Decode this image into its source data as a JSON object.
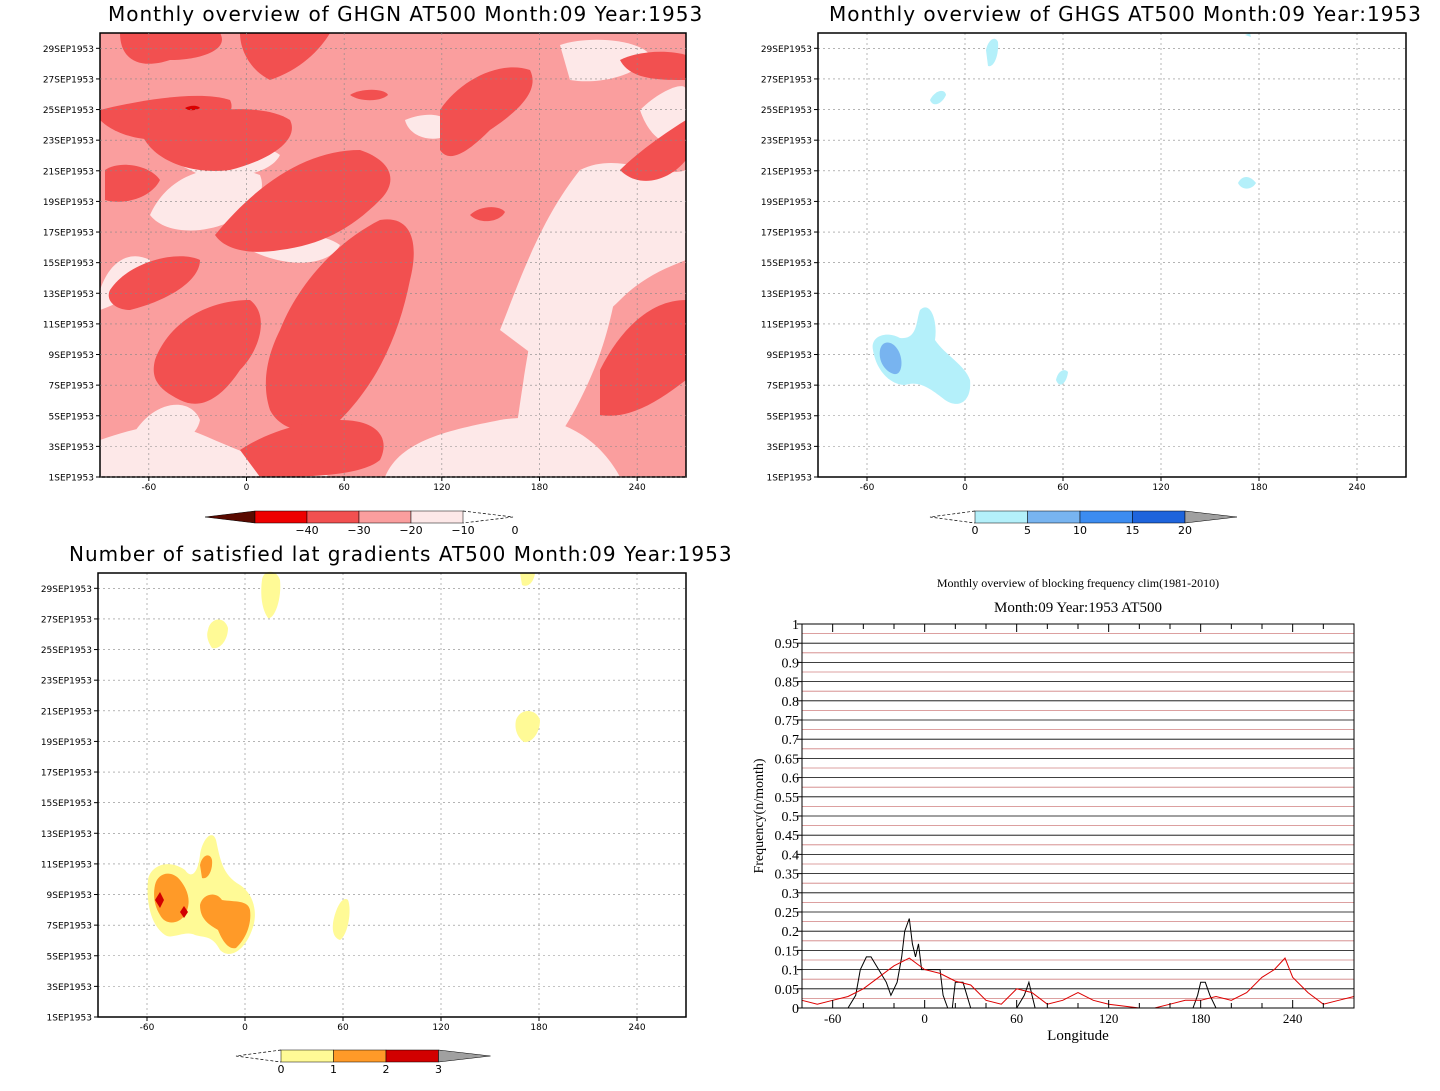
{
  "panels": {
    "ghgn": {
      "title": "Monthly overview of GHGN AT500 Month:09 Year:1953",
      "colorbar": {
        "labels": [
          "-40",
          "-30",
          "-20",
          "-10",
          "0"
        ],
        "colors": [
          "#5a0a00",
          "#ee0000",
          "#f25050",
          "#fa9e9e",
          "#fde8e8"
        ]
      }
    },
    "ghgs": {
      "title": "Monthly overview of GHGS AT500 Month:09 Year:1953",
      "colorbar": {
        "labels": [
          "0",
          "5",
          "10",
          "15",
          "20"
        ],
        "colors": [
          "#b4f0fa",
          "#78b4f0",
          "#3c8cf0",
          "#1e64dc",
          "#a0a0a0"
        ]
      }
    },
    "nsat": {
      "title": "Number of satisfied lat gradients AT500 Month:09 Year:1953",
      "colorbar": {
        "labels": [
          "0",
          "1",
          "2",
          "3"
        ],
        "colors": [
          "#fffa96",
          "#ff9a28",
          "#d20000",
          "#a0a0a0"
        ]
      }
    },
    "freq": {
      "title": "Monthly overview of blocking frequency clim(1981-2010)",
      "subtitle": "Month:09 Year:1953  AT500"
    }
  },
  "axes": {
    "date_ticks": [
      "1SEP1953",
      "3SEP1953",
      "5SEP1953",
      "7SEP1953",
      "9SEP1953",
      "11SEP1953",
      "13SEP1953",
      "15SEP1953",
      "17SEP1953",
      "19SEP1953",
      "21SEP1953",
      "23SEP1953",
      "25SEP1953",
      "27SEP1953",
      "29SEP1953"
    ],
    "lon_ticks": [
      "-60",
      "0",
      "60",
      "120",
      "180",
      "240"
    ]
  },
  "chart_data": [
    {
      "type": "heatmap",
      "title": "Monthly overview of GHGN AT500 Month:09 Year:1953",
      "x_range": [
        -90,
        270
      ],
      "y_range": [
        "1SEP1953",
        "30SEP1953"
      ],
      "levels": [
        -40,
        -30,
        -20,
        -10,
        0
      ],
      "grid": true
    },
    {
      "type": "heatmap",
      "title": "Monthly overview of GHGS AT500 Month:09 Year:1953",
      "x_range": [
        -90,
        270
      ],
      "y_range": [
        "1SEP1953",
        "30SEP1953"
      ],
      "levels": [
        0,
        5,
        10,
        15,
        20
      ],
      "grid": true
    },
    {
      "type": "heatmap",
      "title": "Number of satisfied lat gradients AT500 Month:09 Year:1953",
      "x_range": [
        -90,
        270
      ],
      "y_range": [
        "1SEP1953",
        "30SEP1953"
      ],
      "levels": [
        0,
        1,
        2,
        3
      ],
      "grid": true
    },
    {
      "type": "line",
      "title": "Monthly overview of blocking frequency clim(1981-2010)",
      "subtitle": "Month:09 Year:1953  AT500",
      "xlabel": "Longitude",
      "ylabel": "Frequency(n/month)",
      "xlim": [
        -80,
        280
      ],
      "ylim": [
        0,
        1
      ],
      "x_ticks": [
        "-60",
        "0",
        "60",
        "120",
        "180",
        "240"
      ],
      "y_ticks": [
        "0",
        "0.05",
        "0.1",
        "0.15",
        "0.2",
        "0.25",
        "0.3",
        "0.35",
        "0.4",
        "0.45",
        "0.5",
        "0.55",
        "0.6",
        "0.65",
        "0.7",
        "0.75",
        "0.8",
        "0.85",
        "0.9",
        "0.95",
        "1"
      ],
      "series": [
        {
          "color": "#000000",
          "x": [
            -80,
            -60,
            -50,
            -45,
            -42,
            -38,
            -35,
            -30,
            -25,
            -22,
            -18,
            -15,
            -13,
            -10,
            -8,
            -6,
            -4,
            -2,
            0,
            5,
            10,
            12,
            15,
            18,
            20,
            25,
            30,
            35,
            40,
            60,
            65,
            68,
            70,
            72,
            75,
            80,
            100,
            120,
            150,
            175,
            178,
            180,
            183,
            186,
            190,
            200,
            230,
            260,
            280
          ],
          "y": [
            0,
            0,
            0,
            0.033,
            0.1,
            0.133,
            0.133,
            0.1,
            0.067,
            0.033,
            0.067,
            0.133,
            0.2,
            0.233,
            0.167,
            0.133,
            0.167,
            0.1,
            0.1,
            0.1,
            0.1,
            0.033,
            0,
            0,
            0.067,
            0.067,
            0,
            0,
            0,
            0,
            0.033,
            0.067,
            0.033,
            0,
            0,
            0,
            0,
            0,
            0,
            0,
            0.033,
            0.067,
            0.067,
            0.033,
            0,
            0,
            0,
            0,
            0
          ]
        },
        {
          "color": "#dd0000",
          "x": [
            -80,
            -70,
            -60,
            -50,
            -40,
            -30,
            -20,
            -10,
            0,
            10,
            20,
            30,
            40,
            50,
            60,
            70,
            80,
            90,
            100,
            110,
            120,
            140,
            150,
            160,
            170,
            180,
            190,
            200,
            210,
            220,
            228,
            235,
            240,
            250,
            260,
            270,
            280
          ],
          "y": [
            0.02,
            0.01,
            0.02,
            0.03,
            0.05,
            0.08,
            0.11,
            0.13,
            0.1,
            0.09,
            0.07,
            0.06,
            0.02,
            0.01,
            0.05,
            0.04,
            0.01,
            0.02,
            0.04,
            0.02,
            0.01,
            0,
            0,
            0.01,
            0.02,
            0.02,
            0.03,
            0.02,
            0.04,
            0.08,
            0.1,
            0.13,
            0.08,
            0.04,
            0.01,
            0.02,
            0.03
          ]
        }
      ]
    }
  ]
}
